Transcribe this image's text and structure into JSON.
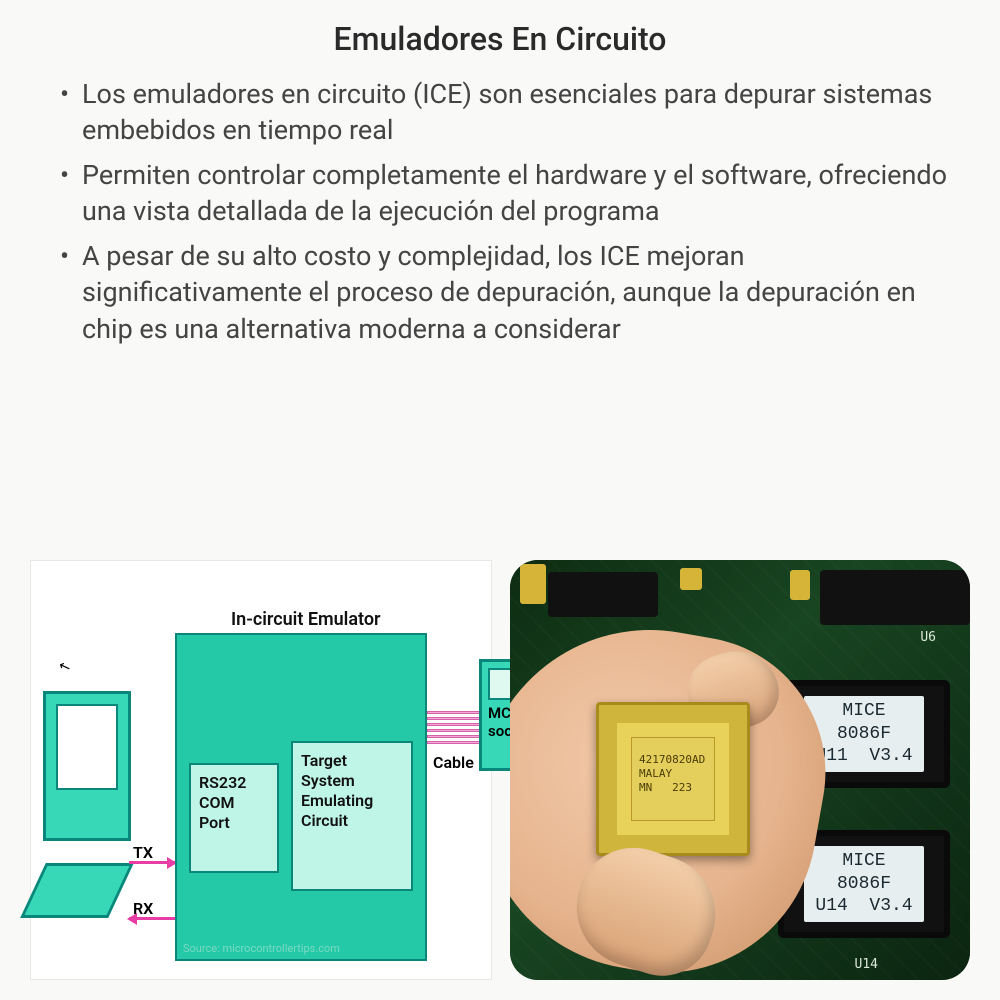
{
  "title": "Emuladores En Circuito",
  "bullets": [
    "Los emuladores en circuito (ICE) son esenciales para depurar sistemas embebidos en tiempo real",
    "Permiten controlar completamente el hardware y el software, ofreciendo una vista detallada de la ejecución del programa",
    "A pesar de su alto costo y complejidad, los ICE mejoran significativamente el proceso de depuración, aunque la depuración en chip es una alternativa moderna a considerar"
  ],
  "diagram": {
    "title": "In-circuit Emulator",
    "rs232": "RS232\nCOM\nPort",
    "target": "Target\nSystem\nEmulating\nCircuit",
    "tx": "TX",
    "rx": "RX",
    "cable": "Cable",
    "mcu": "MCU\nsocket",
    "source": "Source: microcontrollertips.com",
    "colors": {
      "block_fill": "#24c9a8",
      "block_border": "#0a877a",
      "inner_fill": "#bff5e6",
      "arrow": "#e63ea6"
    }
  },
  "photo": {
    "chip_text": "42170820AD\nMALAY\nMN   223",
    "label1": "MICE\n8086F\nU11  V3.4",
    "label2": "MICE\n8086F\nU14  V3.4",
    "u14": "U14",
    "u6": "U6"
  }
}
